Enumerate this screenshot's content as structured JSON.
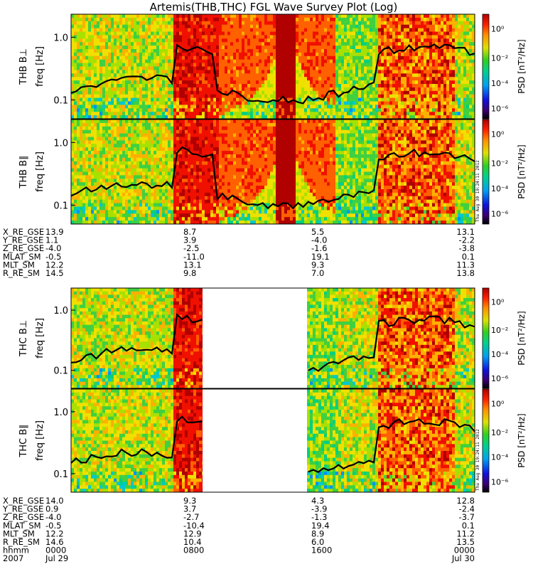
{
  "title": "Artemis(THB,THC) FGL Wave Survey Plot (Log)",
  "stamp": "Thu Aug 30 19:24:11 2012",
  "chart_data": [
    {
      "type": "heatmap",
      "panel": "THB B⊥",
      "ylabel": "THB B⊥",
      "ylabel2": "freq [Hz]",
      "yticks": [
        "1.0",
        "0.1"
      ],
      "colorbar_label": "PSD [nT²/Hz]",
      "colorbar_ticks": [
        "10⁰",
        "10⁻²",
        "10⁻⁴",
        "10⁻⁶"
      ],
      "log_scale": true
    },
    {
      "type": "heatmap",
      "panel": "THB B∥",
      "ylabel": "THB B∥",
      "ylabel2": "freq [Hz]",
      "yticks": [
        "1.0",
        "0.1"
      ],
      "colorbar_label": "PSD [nT²/Hz]",
      "colorbar_ticks": [
        "10⁰",
        "10⁻²",
        "10⁻⁴",
        "10⁻⁶"
      ],
      "log_scale": true
    },
    {
      "type": "heatmap",
      "panel": "THC B⊥",
      "ylabel": "THC B⊥",
      "ylabel2": "freq [Hz]",
      "yticks": [
        "1.0",
        "0.1"
      ],
      "colorbar_label": "PSD [nT²/Hz]",
      "colorbar_ticks": [
        "10⁰",
        "10⁻²",
        "10⁻⁴",
        "10⁻⁶"
      ],
      "log_scale": true
    },
    {
      "type": "heatmap",
      "panel": "THC B∥",
      "ylabel": "THC B∥",
      "ylabel2": "freq [Hz]",
      "yticks": [
        "1.0",
        "0.1"
      ],
      "colorbar_label": "PSD [nT²/Hz]",
      "colorbar_ticks": [
        "10⁰",
        "10⁻²",
        "10⁻⁴",
        "10⁻⁶"
      ],
      "log_scale": true
    }
  ],
  "orbit_thb": {
    "labels": [
      "X_RE_GSE",
      "Y_RE_GSE",
      "Z_RE_GSE",
      "MLAT_SM",
      "MLT_SM",
      "R_RE_SM"
    ],
    "columns": [
      [
        "13.9",
        "1.1",
        "-4.0",
        "-0.5",
        "12.2",
        "14.5"
      ],
      [
        "8.7",
        "3.9",
        "-2.5",
        "-11.0",
        "13.1",
        "9.8"
      ],
      [
        "5.5",
        "-4.0",
        "-1.6",
        "19.1",
        "9.3",
        "7.0"
      ],
      [
        "13.1",
        "-2.2",
        "-3.8",
        "0.1",
        "11.3",
        "13.8"
      ]
    ]
  },
  "orbit_thc": {
    "labels": [
      "X_RE_GSE",
      "Y_RE_GSE",
      "Z_RE_GSE",
      "MLAT_SM",
      "MLT_SM",
      "R_RE_SM",
      "hhmm",
      "2007"
    ],
    "columns": [
      [
        "14.0",
        "0.9",
        "-4.0",
        "-0.5",
        "12.2",
        "14.6",
        "0000",
        "Jul 29"
      ],
      [
        "9.3",
        "3.7",
        "-2.7",
        "-10.4",
        "12.9",
        "10.4",
        "0800",
        ""
      ],
      [
        "4.3",
        "-3.9",
        "-1.3",
        "19.4",
        "8.9",
        "6.0",
        "1600",
        ""
      ],
      [
        "12.8",
        "-2.4",
        "-3.7",
        "0.1",
        "11.2",
        "13.5",
        "0000",
        "Jul 30"
      ]
    ]
  }
}
